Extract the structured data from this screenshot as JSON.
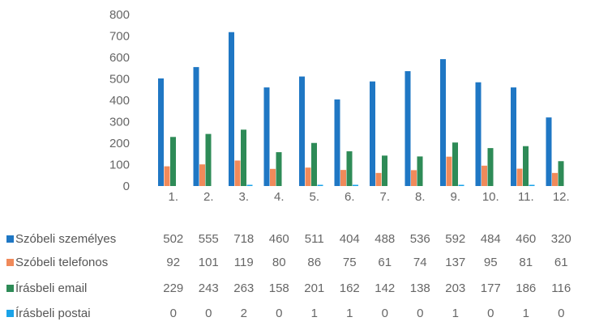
{
  "chart_data": {
    "type": "bar",
    "title": "",
    "xlabel": "",
    "ylabel": "",
    "ylim": [
      0,
      800
    ],
    "yticks": [
      0,
      100,
      200,
      300,
      400,
      500,
      600,
      700,
      800
    ],
    "categories": [
      "1.",
      "2.",
      "3.",
      "4.",
      "5.",
      "6.",
      "7.",
      "8.",
      "9.",
      "10.",
      "11.",
      "12."
    ],
    "grid": false,
    "legend": "data-table-left",
    "series": [
      {
        "name": "Szóbeli személyes",
        "color": "#1f77c4",
        "values": [
          502,
          555,
          718,
          460,
          511,
          404,
          488,
          536,
          592,
          484,
          460,
          320
        ]
      },
      {
        "name": "Szóbeli telefonos",
        "color": "#f08a5a",
        "values": [
          92,
          101,
          119,
          80,
          86,
          75,
          61,
          74,
          137,
          95,
          81,
          61
        ]
      },
      {
        "name": "Írásbeli email",
        "color": "#2e8b57",
        "values": [
          229,
          243,
          263,
          158,
          201,
          162,
          142,
          138,
          203,
          177,
          186,
          116
        ]
      },
      {
        "name": "Írásbeli postai",
        "color": "#1aa3e8",
        "values": [
          0,
          0,
          2,
          0,
          1,
          1,
          0,
          0,
          1,
          0,
          1,
          0
        ]
      }
    ]
  }
}
